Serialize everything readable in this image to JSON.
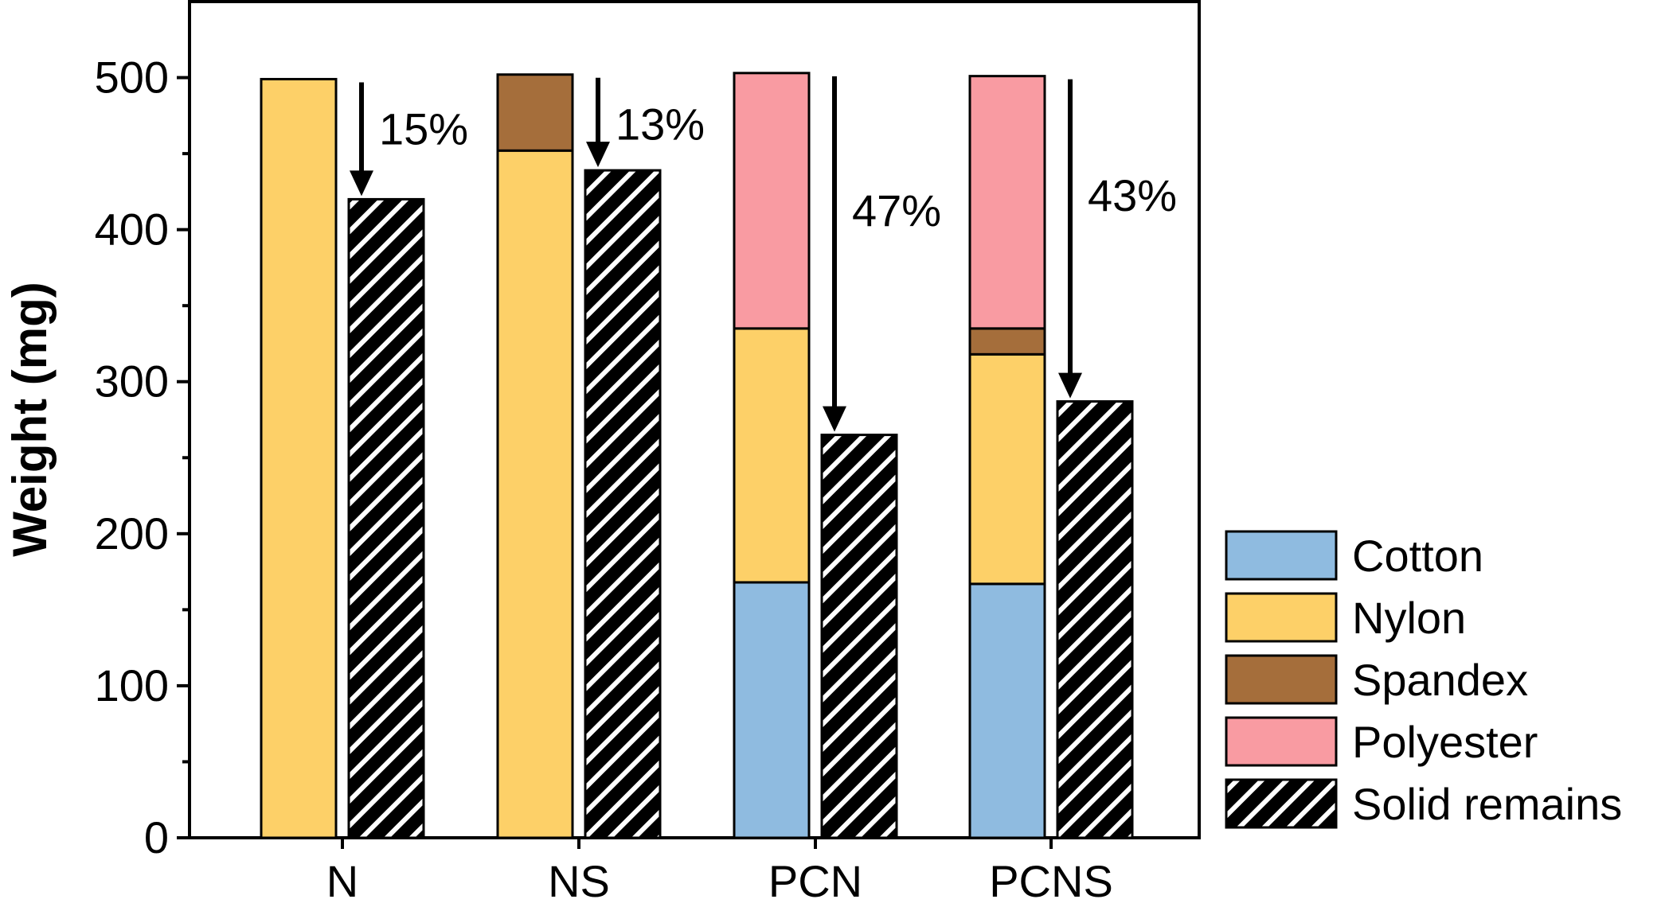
{
  "chart_data": {
    "type": "bar",
    "ylabel": "Weight (mg)",
    "ylim": [
      0,
      550
    ],
    "yticks": [
      0,
      100,
      200,
      300,
      400,
      500
    ],
    "categories": [
      "N",
      "NS",
      "PCN",
      "PCNS"
    ],
    "series": [
      {
        "name": "Cotton",
        "color": "#8fbbe0",
        "values": [
          0,
          0,
          168,
          167
        ]
      },
      {
        "name": "Nylon",
        "color": "#fdd068",
        "values": [
          499,
          452,
          167,
          151
        ]
      },
      {
        "name": "Spandex",
        "color": "#a56e3b",
        "values": [
          0,
          50,
          0,
          17
        ]
      },
      {
        "name": "Polyester",
        "color": "#f99ba2",
        "values": [
          0,
          0,
          168,
          166
        ]
      }
    ],
    "solid_remains": {
      "name": "Solid remains",
      "values": [
        420,
        439,
        265,
        287
      ]
    },
    "annotations": [
      "15%",
      "13%",
      "47%",
      "43%"
    ],
    "legend_position": "right"
  }
}
